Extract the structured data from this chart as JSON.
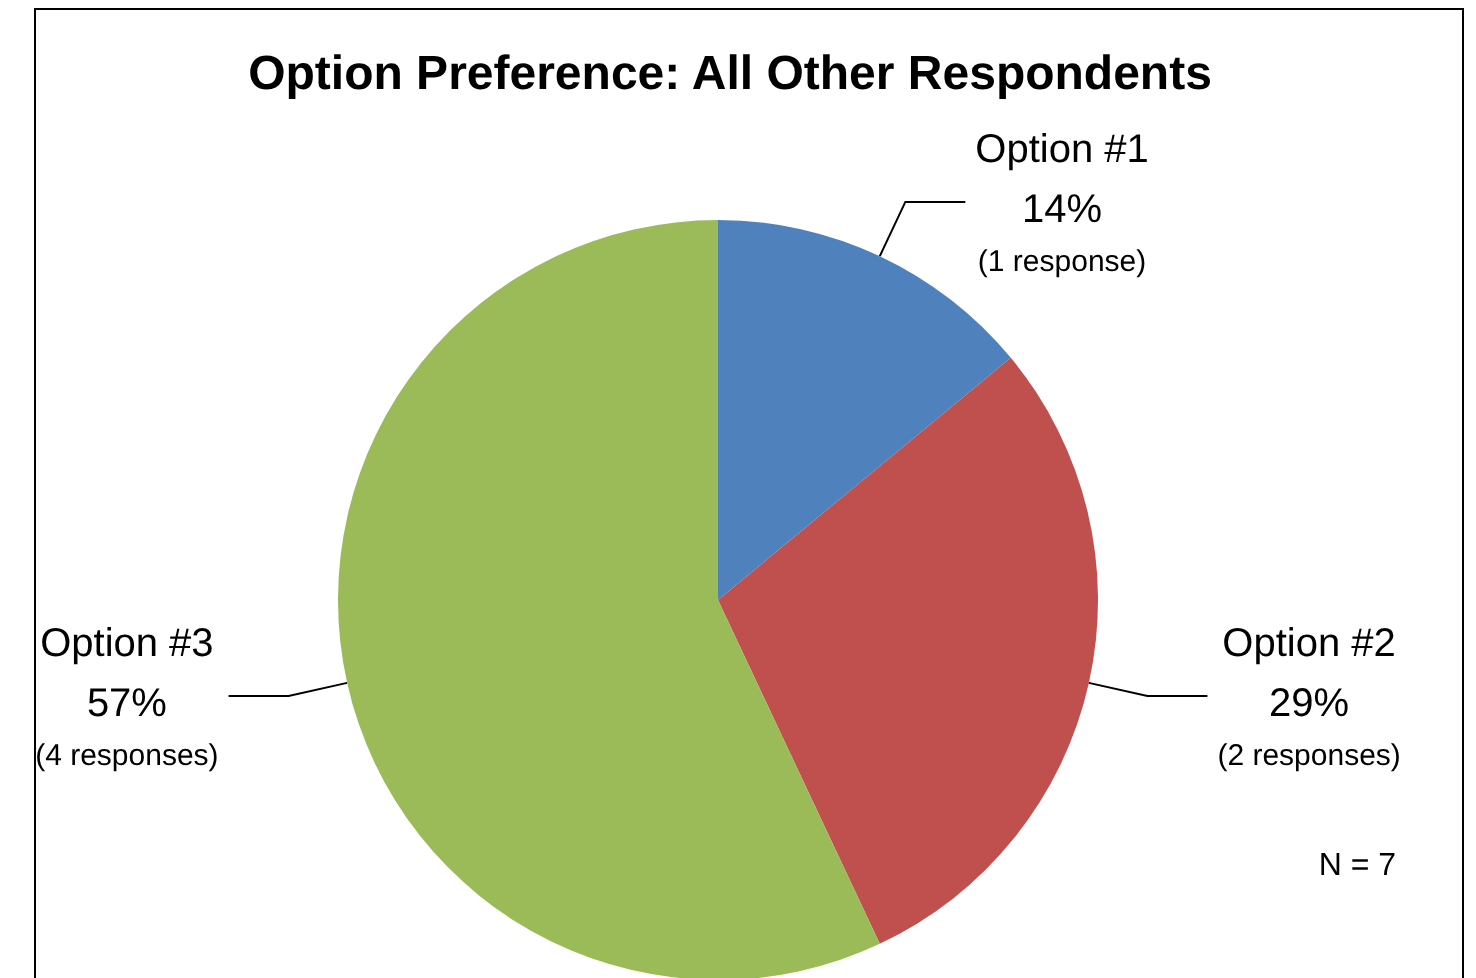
{
  "chart_data": {
    "type": "pie",
    "title": "Option Preference: All Other Respondents",
    "categories": [
      "Option #1",
      "Option #2",
      "Option #3"
    ],
    "values": [
      14,
      29,
      57
    ],
    "colors": [
      "#4f81bd",
      "#c0504d",
      "#9bbb59"
    ],
    "value_labels": [
      "14%",
      "29%",
      "57%"
    ],
    "legend": false,
    "annotations": [
      {
        "text": "(1 response)",
        "x": "Option #1"
      },
      {
        "text": "(2 responses)",
        "x": "Option #2"
      },
      {
        "text": "(4 responses)",
        "x": "Option #3"
      },
      "N = 7"
    ]
  }
}
